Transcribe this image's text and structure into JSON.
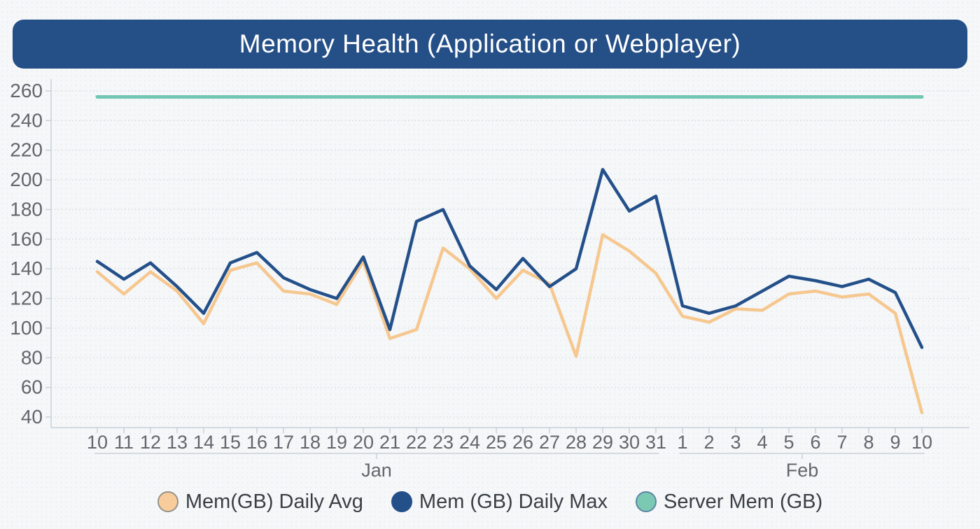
{
  "header": {
    "title": "Memory Health (Application or Webplayer)"
  },
  "legend": {
    "items": [
      {
        "label": "Mem(GB) Daily Avg",
        "color": "#f8cc9b",
        "border": "#97938b"
      },
      {
        "label": "Mem (GB) Daily Max",
        "color": "#24508a",
        "border": "#24508a"
      },
      {
        "label": "Server Mem (GB)",
        "color": "#7bc9b3",
        "border": "#5b87a5"
      }
    ]
  },
  "chart_data": {
    "type": "line",
    "title": "Memory Health (Application or Webplayer)",
    "xlabel": "",
    "ylabel": "",
    "ylim": [
      40,
      260
    ],
    "y_ticks": [
      40,
      60,
      80,
      100,
      120,
      140,
      160,
      180,
      200,
      220,
      240,
      260
    ],
    "grid": true,
    "legend_position": "bottom",
    "x_categories": [
      "10",
      "11",
      "12",
      "13",
      "14",
      "15",
      "16",
      "17",
      "18",
      "19",
      "20",
      "21",
      "22",
      "23",
      "24",
      "25",
      "26",
      "27",
      "28",
      "29",
      "30",
      "31",
      "1",
      "2",
      "3",
      "4",
      "5",
      "6",
      "7",
      "8",
      "9",
      "10"
    ],
    "x_groups": [
      {
        "label": "Jan",
        "start": 0,
        "end": 21
      },
      {
        "label": "Feb",
        "start": 22,
        "end": 31
      }
    ],
    "series": [
      {
        "name": "Mem(GB) Daily Avg",
        "color": "#f6c78f",
        "values": [
          138,
          123,
          138,
          125,
          103,
          139,
          144,
          125,
          123,
          116,
          145,
          93,
          99,
          154,
          140,
          120,
          139,
          130,
          81,
          163,
          152,
          137,
          108,
          104,
          113,
          112,
          123,
          125,
          121,
          123,
          110,
          43
        ]
      },
      {
        "name": "Mem (GB) Daily Max",
        "color": "#24508a",
        "values": [
          145,
          133,
          144,
          128,
          110,
          144,
          151,
          134,
          126,
          120,
          148,
          99,
          172,
          180,
          142,
          126,
          147,
          128,
          140,
          207,
          179,
          189,
          115,
          110,
          115,
          125,
          135,
          132,
          128,
          133,
          124,
          87
        ]
      },
      {
        "name": "Server Mem (GB)",
        "color": "#72c7b2",
        "constant": 256
      }
    ]
  },
  "colors": {
    "header_bg": "#254f87",
    "header_text": "#ffffff",
    "grid_line": "#d3d7dc",
    "axis_line": "#c9d2da",
    "tick_text": "#63676d",
    "legend_text": "#3a3f45"
  }
}
